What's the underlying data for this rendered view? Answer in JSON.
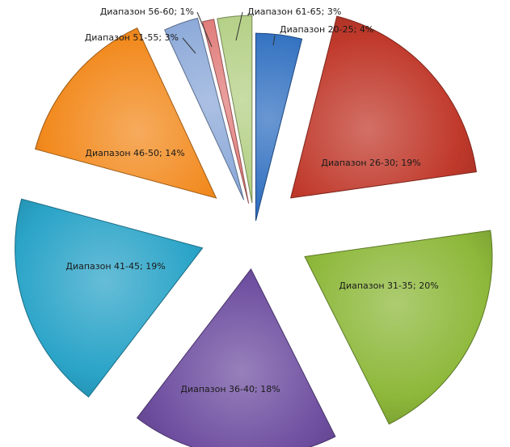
{
  "chart_data": {
    "type": "pie",
    "exploded": true,
    "legend": "none",
    "title": "",
    "series": [
      {
        "values": [
          4,
          19,
          20,
          18,
          19,
          14,
          3,
          1,
          3
        ],
        "labels": [
          "Диапазон 20-25; 4%",
          "Диапазон 26-30; 19%",
          "Диапазон 31-35; 20%",
          "Диапазон 36-40; 18%",
          "Диапазон 41-45; 19%",
          "Диапазон 46-50; 14%",
          "Диапазон 51-55; 3%",
          "Диапазон 56-60; 1%",
          "Диапазон 61-65; 3%"
        ],
        "colors": [
          "#2f6fc0",
          "#c0392b",
          "#8db83a",
          "#6e4ea0",
          "#2aa4c8",
          "#f28a1e",
          "#8aa8d8",
          "#e07b78",
          "#b3cf84"
        ]
      }
    ]
  }
}
